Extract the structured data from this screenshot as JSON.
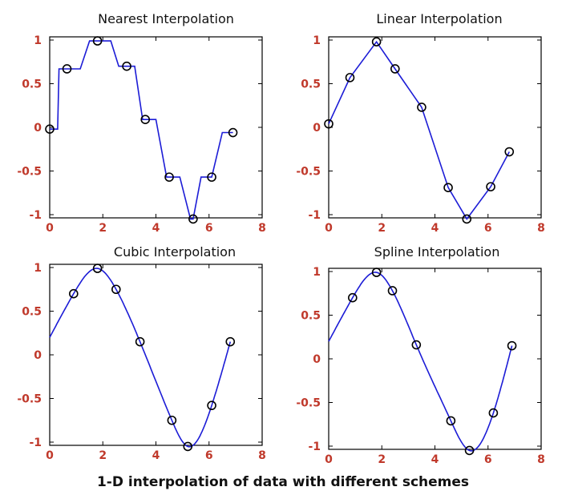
{
  "caption": "1-D interpolation of data with different schemes",
  "colors": {
    "curve": "#1c1cd6",
    "tick_label": "#c0392b",
    "marker": "#000000",
    "axes": "#000000"
  },
  "chart_data": [
    {
      "type": "line",
      "title": "Nearest Interpolation",
      "method": "nearest",
      "xlim": [
        0,
        8
      ],
      "ylim": [
        -1,
        1
      ],
      "xticks": [
        0,
        2,
        4,
        6,
        8
      ],
      "xtick_labels": [
        "0",
        "2",
        "4",
        "6",
        "8"
      ],
      "yticks": [
        1,
        0.5,
        0,
        -0.5,
        -1
      ],
      "ytick_labels": [
        "1",
        "0.5",
        "0",
        "-0.5",
        "-1"
      ],
      "series": [
        {
          "kind": "markers",
          "x": [
            0.0,
            0.65,
            1.8,
            2.9,
            3.6,
            4.5,
            5.4,
            6.1,
            6.9
          ],
          "y": [
            -0.02,
            0.67,
            0.99,
            0.7,
            0.09,
            -0.57,
            -1.05,
            -0.57,
            -0.06
          ]
        },
        {
          "kind": "curve",
          "x": [
            0.0,
            0.3,
            0.35,
            0.65,
            1.15,
            1.5,
            1.8,
            2.3,
            2.6,
            2.9,
            3.2,
            3.5,
            3.6,
            4.0,
            4.4,
            4.5,
            4.9,
            5.3,
            5.4,
            5.7,
            6.1,
            6.5,
            6.9
          ],
          "y": [
            -0.02,
            -0.02,
            0.67,
            0.67,
            0.67,
            0.99,
            0.99,
            0.99,
            0.7,
            0.7,
            0.7,
            0.09,
            0.09,
            0.09,
            -0.57,
            -0.57,
            -0.57,
            -1.05,
            -1.05,
            -0.57,
            -0.57,
            -0.06,
            -0.06
          ]
        }
      ]
    },
    {
      "type": "line",
      "title": "Linear Interpolation",
      "method": "linear",
      "xlim": [
        0,
        8
      ],
      "ylim": [
        -1,
        1
      ],
      "xticks": [
        0,
        2,
        4,
        6,
        8
      ],
      "xtick_labels": [
        "0",
        "2",
        "4",
        "6",
        "8"
      ],
      "yticks": [
        1,
        0.5,
        0,
        -0.5,
        -1
      ],
      "ytick_labels": [
        "1",
        "0.5",
        "0",
        "-0.5",
        "-1"
      ],
      "series": [
        {
          "kind": "markers",
          "x": [
            0.0,
            0.8,
            1.8,
            2.5,
            3.5,
            4.5,
            5.2,
            6.1,
            6.8
          ],
          "y": [
            0.04,
            0.57,
            0.98,
            0.67,
            0.23,
            -0.69,
            -1.05,
            -0.68,
            -0.28
          ]
        },
        {
          "kind": "curve",
          "x": [
            0.0,
            0.8,
            1.8,
            2.5,
            3.5,
            4.5,
            5.2,
            6.1,
            6.8
          ],
          "y": [
            0.04,
            0.57,
            0.98,
            0.67,
            0.23,
            -0.69,
            -1.05,
            -0.68,
            -0.28
          ]
        }
      ]
    },
    {
      "type": "line",
      "title": "Cubic Interpolation",
      "method": "cubic",
      "xlim": [
        0,
        8
      ],
      "ylim": [
        -1,
        1
      ],
      "xticks": [
        0,
        2,
        4,
        6,
        8
      ],
      "xtick_labels": [
        "0",
        "2",
        "4",
        "6",
        "8"
      ],
      "yticks": [
        1,
        0.5,
        0,
        -0.5,
        -1
      ],
      "ytick_labels": [
        "1",
        "0.5",
        "0",
        "-0.5",
        "-1"
      ],
      "series": [
        {
          "kind": "markers",
          "x": [
            0.9,
            1.8,
            2.5,
            3.4,
            4.6,
            5.2,
            6.1,
            6.8
          ],
          "y": [
            0.7,
            0.99,
            0.75,
            0.15,
            -0.75,
            -1.05,
            -0.58,
            0.15
          ]
        },
        {
          "kind": "curve",
          "x": [
            0.0,
            0.9,
            1.8,
            2.5,
            3.4,
            4.6,
            5.2,
            6.1,
            6.8
          ],
          "y": [
            0.2,
            0.7,
            0.99,
            0.75,
            0.15,
            -0.75,
            -1.05,
            -0.58,
            0.15
          ]
        }
      ]
    },
    {
      "type": "line",
      "title": "Spline Interpolation",
      "method": "spline",
      "xlim": [
        0,
        8
      ],
      "ylim": [
        -1,
        1
      ],
      "xticks": [
        0,
        2,
        4,
        6,
        8
      ],
      "xtick_labels": [
        "0",
        "2",
        "4",
        "6",
        "8"
      ],
      "yticks": [
        1,
        0.5,
        0,
        -0.5,
        -1
      ],
      "ytick_labels": [
        "1",
        "0.5",
        "0",
        "-0.5",
        "-1"
      ],
      "series": [
        {
          "kind": "markers",
          "x": [
            0.9,
            1.8,
            2.4,
            3.3,
            4.6,
            5.3,
            6.2,
            6.9
          ],
          "y": [
            0.7,
            0.99,
            0.78,
            0.16,
            -0.71,
            -1.05,
            -0.62,
            0.15
          ]
        },
        {
          "kind": "curve",
          "x": [
            0.0,
            0.9,
            1.8,
            2.4,
            3.3,
            4.6,
            5.3,
            6.2,
            6.9
          ],
          "y": [
            0.2,
            0.7,
            0.99,
            0.78,
            0.16,
            -0.71,
            -1.05,
            -0.62,
            0.15
          ]
        }
      ]
    }
  ]
}
